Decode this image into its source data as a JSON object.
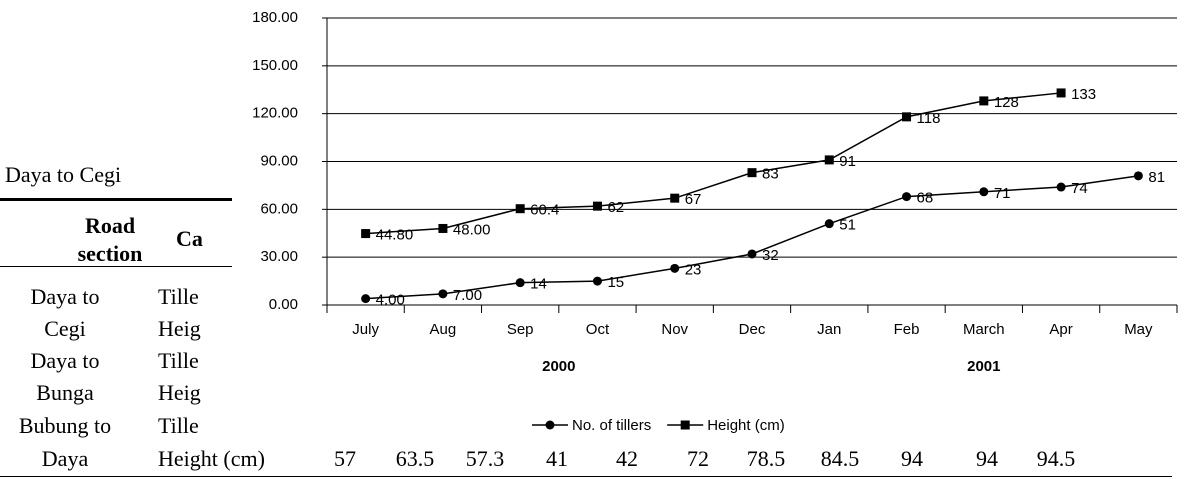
{
  "table": {
    "caption": "Daya to Cegi",
    "header": [
      "Road section",
      "Ca"
    ],
    "rows": [
      [
        "Daya to",
        "Tille"
      ],
      [
        "Cegi",
        "Heig"
      ],
      [
        "Daya to",
        "Tille"
      ],
      [
        "Bunga",
        "Heig"
      ],
      [
        "Bubung to",
        "Tille"
      ],
      [
        "Daya",
        "Height (cm)",
        57,
        63.5,
        57.3,
        41,
        42,
        72,
        78.5,
        84.5,
        94,
        94,
        94.5
      ]
    ]
  },
  "chart_data": {
    "type": "line",
    "categories": [
      "July",
      "Aug",
      "Sep",
      "Oct",
      "Nov",
      "Dec",
      "Jan",
      "Feb",
      "March",
      "Apr",
      "May"
    ],
    "groups": [
      {
        "label": "2000",
        "span": [
          0,
          5
        ]
      },
      {
        "label": "2001",
        "span": [
          6,
          10
        ]
      }
    ],
    "series": [
      {
        "name": "No. of tillers",
        "color": "#000000",
        "marker": "circle",
        "values": [
          4,
          7,
          14,
          15,
          23,
          32,
          51,
          68,
          71,
          74,
          81
        ],
        "value_labels": [
          "4.00",
          "7.00",
          "14",
          "15",
          "23",
          "32",
          "51",
          "68",
          "71",
          "74",
          "81"
        ]
      },
      {
        "name": "Height (cm)",
        "color": "#000000",
        "marker": "square",
        "values": [
          44.8,
          48,
          60.4,
          62,
          67,
          83,
          91,
          118,
          128,
          133,
          null
        ],
        "value_labels": [
          "44.80",
          "48.00",
          "60.4",
          "62",
          "67",
          "83",
          "91",
          "118",
          "128",
          "133",
          null
        ]
      }
    ],
    "ylim": [
      0,
      180
    ],
    "yticks": [
      {
        "value": 0,
        "label": "0.00"
      },
      {
        "value": 30,
        "label": "30.00"
      },
      {
        "value": 60,
        "label": "60.00"
      },
      {
        "value": 90,
        "label": "90.00"
      },
      {
        "value": 120,
        "label": "120.00"
      },
      {
        "value": 150,
        "label": "150.00"
      },
      {
        "value": 180,
        "label": "180.00"
      }
    ],
    "grid": true,
    "legend": "bottom"
  }
}
